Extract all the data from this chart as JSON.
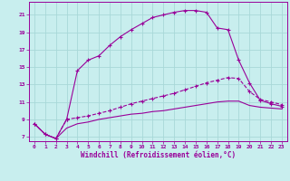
{
  "xlabel": "Windchill (Refroidissement éolien,°C)",
  "bg_color": "#c8eeee",
  "grid_color": "#a8d8d8",
  "line_color": "#990099",
  "xlim": [
    -0.5,
    23.5
  ],
  "ylim": [
    6.5,
    22.5
  ],
  "xticks": [
    0,
    1,
    2,
    3,
    4,
    5,
    6,
    7,
    8,
    9,
    10,
    11,
    12,
    13,
    14,
    15,
    16,
    17,
    18,
    19,
    20,
    21,
    22,
    23
  ],
  "yticks": [
    7,
    9,
    11,
    13,
    15,
    17,
    19,
    21
  ],
  "line1_x": [
    0,
    1,
    2,
    3,
    4,
    5,
    6,
    7,
    8,
    9,
    10,
    11,
    12,
    13,
    14,
    15,
    16,
    17,
    18,
    19,
    20,
    21,
    22,
    23
  ],
  "line1_y": [
    8.5,
    7.3,
    6.8,
    9.0,
    14.6,
    15.8,
    16.3,
    17.5,
    18.5,
    19.3,
    20.0,
    20.7,
    21.0,
    21.3,
    21.5,
    21.5,
    21.3,
    19.5,
    19.3,
    15.8,
    13.2,
    11.2,
    10.8,
    10.5
  ],
  "line2_x": [
    0,
    1,
    2,
    3,
    4,
    5,
    6,
    7,
    8,
    9,
    10,
    11,
    12,
    13,
    14,
    15,
    16,
    17,
    18,
    19,
    20,
    21,
    22,
    23
  ],
  "line2_y": [
    8.5,
    7.3,
    6.8,
    9.0,
    9.2,
    9.4,
    9.7,
    10.0,
    10.4,
    10.8,
    11.1,
    11.4,
    11.7,
    12.0,
    12.4,
    12.8,
    13.2,
    13.5,
    13.8,
    13.7,
    12.2,
    11.3,
    11.0,
    10.7
  ],
  "line3_x": [
    0,
    1,
    2,
    3,
    4,
    5,
    6,
    7,
    8,
    9,
    10,
    11,
    12,
    13,
    14,
    15,
    16,
    17,
    18,
    19,
    20,
    21,
    22,
    23
  ],
  "line3_y": [
    8.5,
    7.3,
    6.8,
    8.0,
    8.5,
    8.7,
    9.0,
    9.2,
    9.4,
    9.6,
    9.7,
    9.9,
    10.0,
    10.2,
    10.4,
    10.6,
    10.8,
    11.0,
    11.1,
    11.1,
    10.6,
    10.4,
    10.3,
    10.2
  ]
}
